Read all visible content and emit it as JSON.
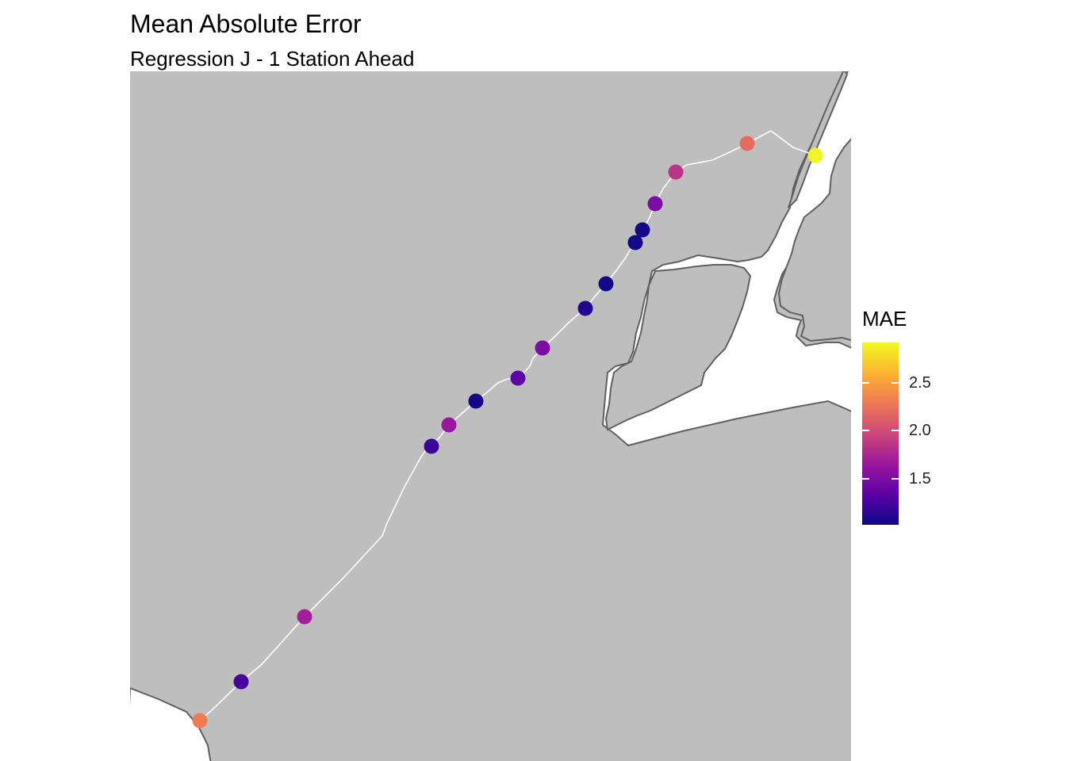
{
  "title": "Mean Absolute Error",
  "subtitle": "Regression J - 1 Station Ahead",
  "legend": {
    "title": "MAE",
    "min": 1.02,
    "max": 2.92,
    "ticks": [
      {
        "value": 2.5,
        "label": "2.5"
      },
      {
        "value": 2.0,
        "label": "2.0"
      },
      {
        "value": 1.5,
        "label": "1.5"
      }
    ],
    "gradient": [
      "#0d0887",
      "#5c01a6",
      "#9c179e",
      "#cc4778",
      "#ed7953",
      "#fdb42f",
      "#f0f921"
    ]
  },
  "colors": {
    "land": "#bebebe",
    "water": "#ffffff",
    "coast": "#606060",
    "route": "#ffffff"
  },
  "chart_data": {
    "type": "scatter",
    "title": "Mean Absolute Error",
    "subtitle": "Regression J - 1 Station Ahead",
    "color_scale": "plasma",
    "legend_title": "MAE",
    "series": [
      {
        "values": [
          2.3,
          1.25,
          1.7,
          1.2,
          1.65,
          1.05,
          1.35,
          1.5,
          1.1,
          1.05,
          1.05,
          1.05,
          1.5,
          1.85,
          2.2,
          2.9
        ]
      }
    ]
  }
}
